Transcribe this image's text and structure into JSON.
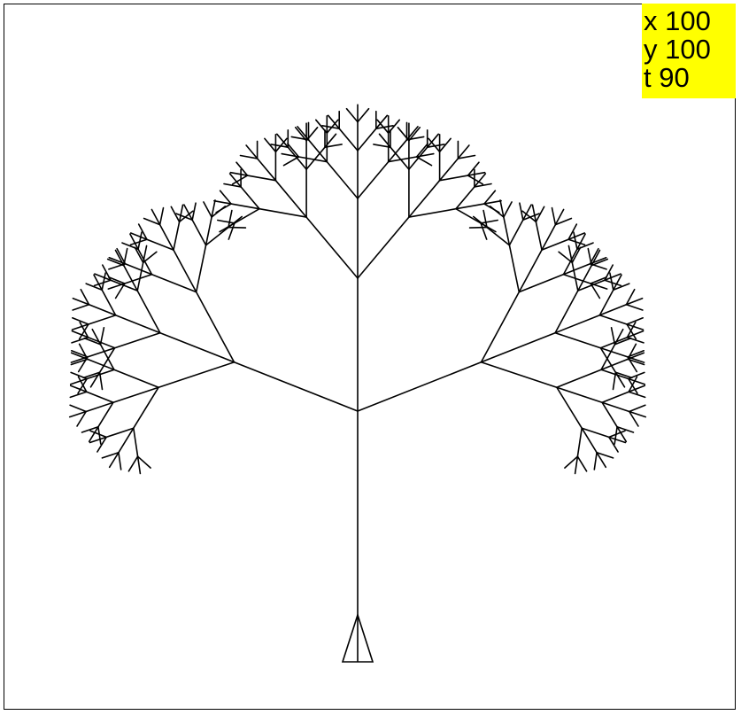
{
  "readout": {
    "x_label": "x 100",
    "y_label": "y 100",
    "t_label": "t 90"
  },
  "turtle": {
    "x": 100,
    "y": 100,
    "heading": 90,
    "icon": "triangle-turtle-icon"
  },
  "tree": {
    "depth": 6,
    "spread_angle_deg": 40,
    "trunk_length": 230,
    "branch_ratio": 0.6
  },
  "colors": {
    "background": "#ffffff",
    "stroke": "#000000",
    "readout_background": "#ffff00"
  }
}
